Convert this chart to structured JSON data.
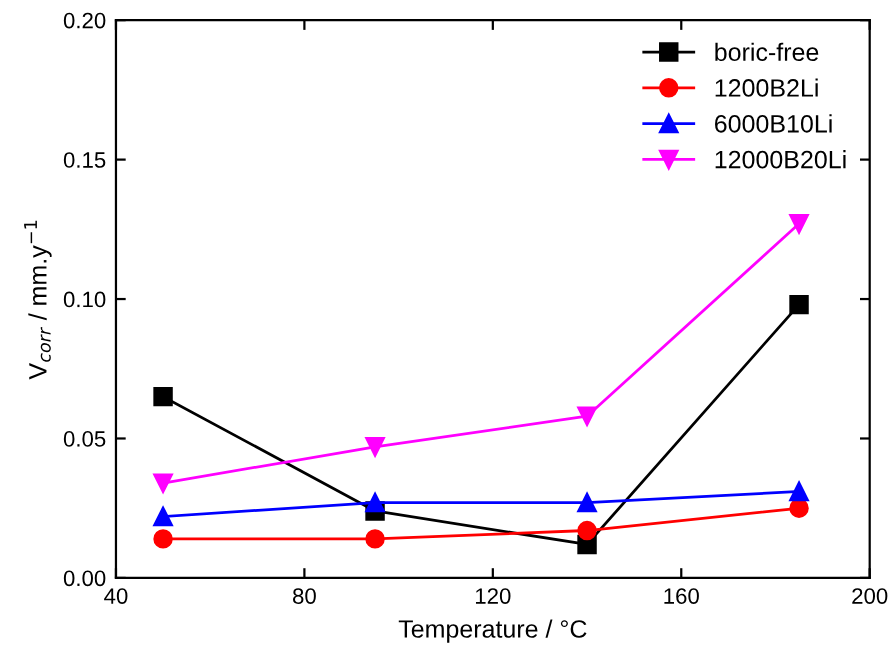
{
  "chart_data": {
    "type": "line",
    "xlabel": "Temperature / °C",
    "ylabel": "V$_{corr}$ / mm.y$^{−1}$",
    "x": [
      50,
      95,
      140,
      185
    ],
    "series": [
      {
        "name": "boric-free",
        "color": "#000000",
        "marker": "square",
        "values": [
          0.065,
          0.024,
          0.012,
          0.098
        ]
      },
      {
        "name": "1200B2Li",
        "color": "#ff0000",
        "marker": "circle",
        "values": [
          0.014,
          0.014,
          0.017,
          0.025
        ]
      },
      {
        "name": "6000B10Li",
        "color": "#0000ff",
        "marker": "triangle",
        "values": [
          0.022,
          0.027,
          0.027,
          0.031
        ]
      },
      {
        "name": "12000B20Li",
        "color": "#ff00ff",
        "marker": "triangle_down",
        "values": [
          0.034,
          0.047,
          0.058,
          0.127
        ]
      }
    ],
    "xlim": [
      40,
      200
    ],
    "xticks": [
      40,
      80,
      120,
      160,
      200
    ],
    "ylim": [
      0,
      0.2
    ],
    "yticks": [
      {
        "value": 0,
        "label": "0.00"
      },
      {
        "value": 0.05,
        "label": "0.05"
      },
      {
        "value": 0.1,
        "label": "0.10"
      },
      {
        "value": 0.15,
        "label": "0.15"
      },
      {
        "value": 0.2,
        "label": "0.20"
      }
    ],
    "legend": "top right",
    "grid": false,
    "line_style": "solid"
  }
}
